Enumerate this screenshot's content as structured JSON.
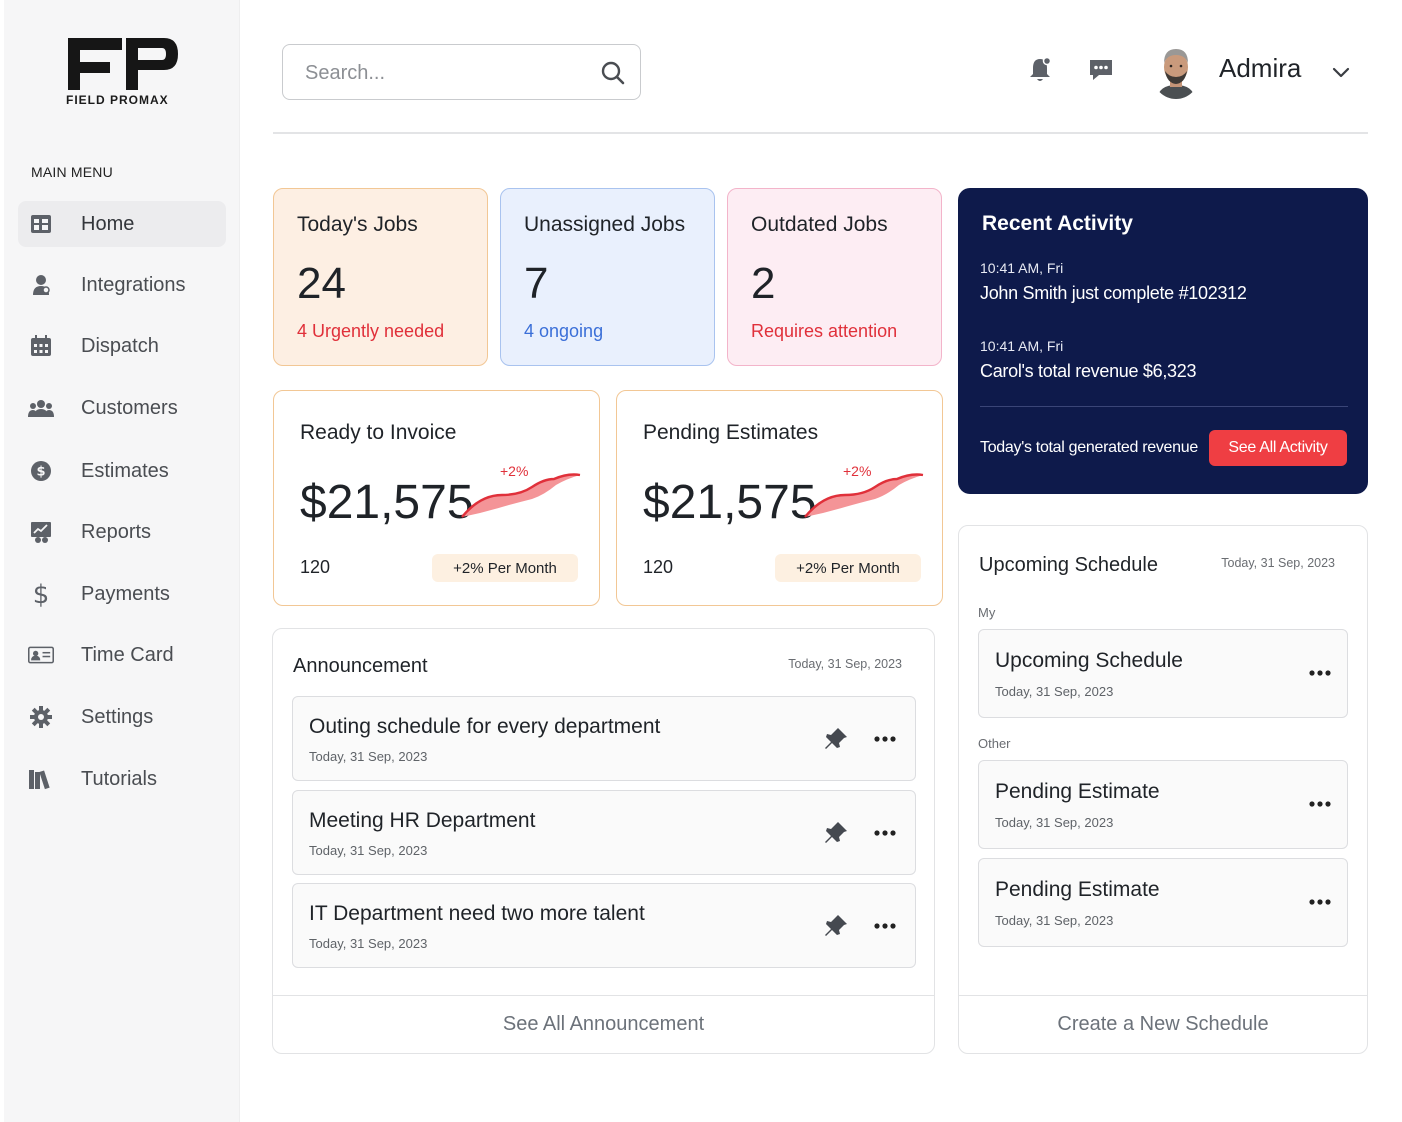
{
  "brand": {
    "logo_text": "FIELD PROMAX"
  },
  "sidebar": {
    "menu_title": "MAIN MENU",
    "items": [
      {
        "label": "Home",
        "icon": "home-icon"
      },
      {
        "label": "Integrations",
        "icon": "user-icon"
      },
      {
        "label": "Dispatch",
        "icon": "calendar-icon"
      },
      {
        "label": "Customers",
        "icon": "customers-icon"
      },
      {
        "label": "Estimates",
        "icon": "estimates-icon"
      },
      {
        "label": "Reports",
        "icon": "reports-icon"
      },
      {
        "label": "Payments",
        "icon": "dollar-icon"
      },
      {
        "label": "Time Card",
        "icon": "id-card-icon"
      },
      {
        "label": "Settings",
        "icon": "gear-icon"
      },
      {
        "label": "Tutorials",
        "icon": "books-icon"
      }
    ]
  },
  "header": {
    "search_placeholder": "Search...",
    "user_name": "Admira"
  },
  "stats": [
    {
      "title": "Today's Jobs",
      "value": "24",
      "sub": "4 Urgently needed",
      "sub_color": "#e0303a"
    },
    {
      "title": "Unassigned Jobs",
      "value": "7",
      "sub": "4 ongoing",
      "sub_color": "#3b6fd8"
    },
    {
      "title": "Outdated Jobs",
      "value": "2",
      "sub": "Requires attention",
      "sub_color": "#e0303a"
    }
  ],
  "invoice_cards": [
    {
      "title": "Ready to Invoice",
      "amount": "$21,575",
      "change": "+2%",
      "count": "120",
      "pill": "+2% Per Month"
    },
    {
      "title": "Pending Estimates",
      "amount": "$21,575",
      "change": "+2%",
      "count": "120",
      "pill": "+2% Per Month"
    }
  ],
  "recent_activity": {
    "title": "Recent Activity",
    "entries": [
      {
        "time": "10:41 AM, Fri",
        "message": "John Smith just complete #102312"
      },
      {
        "time": "10:41 AM, Fri",
        "message": "Carol's total revenue $6,323"
      }
    ],
    "total_label": "Today's total generated revenue",
    "button": "See All Activity"
  },
  "announcement": {
    "title": "Announcement",
    "date": "Today, 31 Sep, 2023",
    "items": [
      {
        "title": "Outing schedule for every department",
        "date": "Today, 31 Sep, 2023"
      },
      {
        "title": "Meeting HR Department",
        "date": "Today, 31 Sep, 2023"
      },
      {
        "title": "IT Department need two more talent",
        "date": "Today, 31 Sep, 2023"
      }
    ],
    "footer": "See All Announcement"
  },
  "schedule": {
    "title": "Upcoming Schedule",
    "date": "Today, 31 Sep, 2023",
    "my_label": "My",
    "other_label": "Other",
    "my_items": [
      {
        "title": "Upcoming Schedule",
        "date": "Today, 31 Sep, 2023"
      }
    ],
    "other_items": [
      {
        "title": "Pending Estimate",
        "date": "Today, 31 Sep, 2023"
      },
      {
        "title": "Pending Estimate",
        "date": "Today, 31 Sep, 2023"
      }
    ],
    "footer": "Create a New Schedule"
  },
  "colors": {
    "accent_red": "#ef3e43",
    "navy": "#0e1a4b",
    "card_orange_bg": "#fdefe3",
    "card_blue_bg": "#e9f0fd",
    "card_pink_bg": "#fdedf3"
  }
}
